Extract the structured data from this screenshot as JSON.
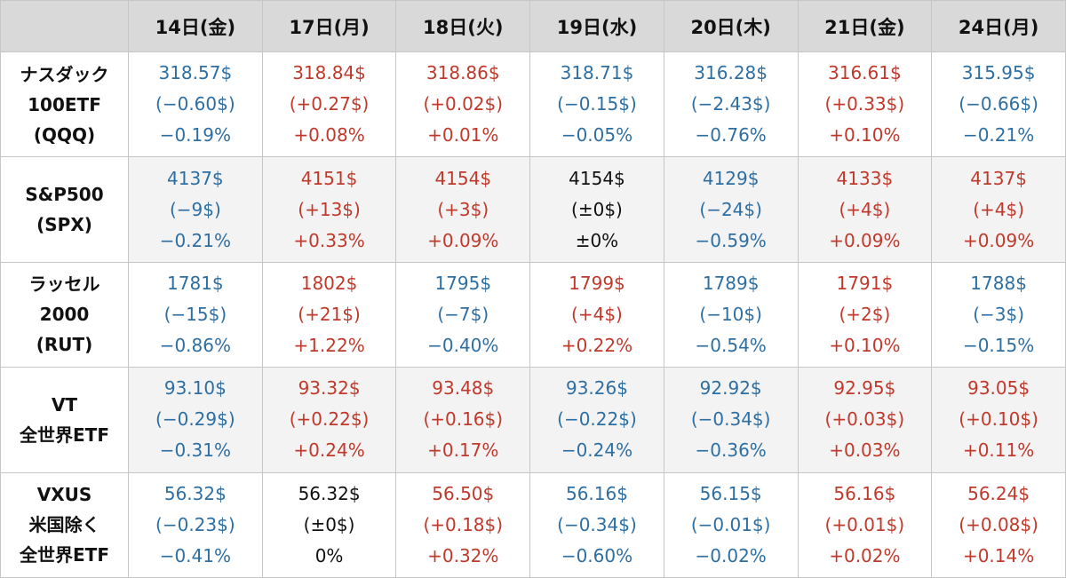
{
  "colors": {
    "up": "#c0392b",
    "down": "#2e6fa3",
    "flat": "#111111",
    "header_bg": "#d9d9d9"
  },
  "days": [
    "14日(金)",
    "17日(月)",
    "18日(火)",
    "19日(水)",
    "20日(木)",
    "21日(金)",
    "24日(月)"
  ],
  "rows": [
    {
      "label": [
        "ナスダック",
        "100ETF",
        "(QQQ)"
      ],
      "cells": [
        {
          "trend": "down",
          "price": "318.57$",
          "change": "(−0.60$)",
          "pct": "−0.19%"
        },
        {
          "trend": "up",
          "price": "318.84$",
          "change": "(+0.27$)",
          "pct": "+0.08%"
        },
        {
          "trend": "up",
          "price": "318.86$",
          "change": "(+0.02$)",
          "pct": "+0.01%"
        },
        {
          "trend": "down",
          "price": "318.71$",
          "change": "(−0.15$)",
          "pct": "−0.05%"
        },
        {
          "trend": "down",
          "price": "316.28$",
          "change": "(−2.43$)",
          "pct": "−0.76%"
        },
        {
          "trend": "up",
          "price": "316.61$",
          "change": "(+0.33$)",
          "pct": "+0.10%"
        },
        {
          "trend": "down",
          "price": "315.95$",
          "change": "(−0.66$)",
          "pct": "−0.21%"
        }
      ]
    },
    {
      "label": [
        "S&P500",
        "(SPX)"
      ],
      "cells": [
        {
          "trend": "down",
          "price": "4137$",
          "change": "(−9$)",
          "pct": "−0.21%"
        },
        {
          "trend": "up",
          "price": "4151$",
          "change": "(+13$)",
          "pct": "+0.33%"
        },
        {
          "trend": "up",
          "price": "4154$",
          "change": "(+3$)",
          "pct": "+0.09%"
        },
        {
          "trend": "flat",
          "price": "4154$",
          "change": "(±0$)",
          "pct": "±0%"
        },
        {
          "trend": "down",
          "price": "4129$",
          "change": "(−24$)",
          "pct": "−0.59%"
        },
        {
          "trend": "up",
          "price": "4133$",
          "change": "(+4$)",
          "pct": "+0.09%"
        },
        {
          "trend": "up",
          "price": "4137$",
          "change": "(+4$)",
          "pct": "+0.09%"
        }
      ]
    },
    {
      "label": [
        "ラッセル",
        "2000",
        "(RUT)"
      ],
      "cells": [
        {
          "trend": "down",
          "price": "1781$",
          "change": "(−15$)",
          "pct": "−0.86%"
        },
        {
          "trend": "up",
          "price": "1802$",
          "change": "(+21$)",
          "pct": "+1.22%"
        },
        {
          "trend": "down",
          "price": "1795$",
          "change": "(−7$)",
          "pct": "−0.40%"
        },
        {
          "trend": "up",
          "price": "1799$",
          "change": "(+4$)",
          "pct": "+0.22%"
        },
        {
          "trend": "down",
          "price": "1789$",
          "change": "(−10$)",
          "pct": "−0.54%"
        },
        {
          "trend": "up",
          "price": "1791$",
          "change": "(+2$)",
          "pct": "+0.10%"
        },
        {
          "trend": "down",
          "price": "1788$",
          "change": "(−3$)",
          "pct": "−0.15%"
        }
      ]
    },
    {
      "label": [
        "VT",
        "全世界ETF"
      ],
      "cells": [
        {
          "trend": "down",
          "price": "93.10$",
          "change": "(−0.29$)",
          "pct": "−0.31%"
        },
        {
          "trend": "up",
          "price": "93.32$",
          "change": "(+0.22$)",
          "pct": "+0.24%"
        },
        {
          "trend": "up",
          "price": "93.48$",
          "change": "(+0.16$)",
          "pct": "+0.17%"
        },
        {
          "trend": "down",
          "price": "93.26$",
          "change": "(−0.22$)",
          "pct": "−0.24%"
        },
        {
          "trend": "down",
          "price": "92.92$",
          "change": "(−0.34$)",
          "pct": "−0.36%"
        },
        {
          "trend": "up",
          "price": "92.95$",
          "change": "(+0.03$)",
          "pct": "+0.03%"
        },
        {
          "trend": "up",
          "price": "93.05$",
          "change": "(+0.10$)",
          "pct": "+0.11%"
        }
      ]
    },
    {
      "label": [
        "VXUS",
        "米国除く",
        "全世界ETF"
      ],
      "cells": [
        {
          "trend": "down",
          "price": "56.32$",
          "change": "(−0.23$)",
          "pct": "−0.41%"
        },
        {
          "trend": "flat",
          "price": "56.32$",
          "change": "(±0$)",
          "pct": "0%"
        },
        {
          "trend": "up",
          "price": "56.50$",
          "change": "(+0.18$)",
          "pct": "+0.32%"
        },
        {
          "trend": "down",
          "price": "56.16$",
          "change": "(−0.34$)",
          "pct": "−0.60%"
        },
        {
          "trend": "down",
          "price": "56.15$",
          "change": "(−0.01$)",
          "pct": "−0.02%"
        },
        {
          "trend": "up",
          "price": "56.16$",
          "change": "(+0.01$)",
          "pct": "+0.02%"
        },
        {
          "trend": "up",
          "price": "56.24$",
          "change": "(+0.08$)",
          "pct": "+0.14%"
        }
      ]
    }
  ]
}
